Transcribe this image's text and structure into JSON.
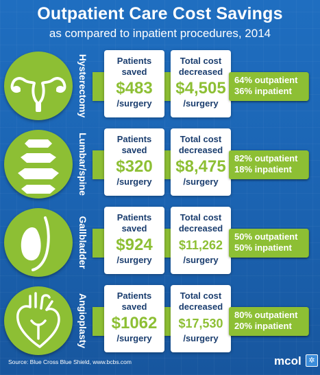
{
  "header": {
    "title": "Outpatient Care Cost Savings",
    "subtitle": "as compared to inpatient procedures, 2014"
  },
  "colors": {
    "background": "#1b63b1",
    "accent_green": "#8dbf34",
    "text_navy": "#1a3d6e"
  },
  "card_labels": {
    "patients_line1": "Patients",
    "patients_line2": "saved",
    "cost_line1": "Total cost",
    "cost_line2": "decreased",
    "per": "/surgery"
  },
  "procedures": [
    {
      "name": "Hysterectomy",
      "icon": "uterus-icon",
      "patients_saved": "$483",
      "cost_decreased": "$4,505",
      "outpatient": "64% outpatient",
      "inpatient": "36% inpatient"
    },
    {
      "name": "Lumbar/spine",
      "icon": "spine-icon",
      "patients_saved": "$320",
      "cost_decreased": "$8,475",
      "outpatient": "82% outpatient",
      "inpatient": "18% inpatient"
    },
    {
      "name": "Gallbladder",
      "icon": "gallbladder-icon",
      "patients_saved": "$924",
      "cost_decreased": "$11,262",
      "outpatient": "50% outpatient",
      "inpatient": "50% inpatient"
    },
    {
      "name": "Angioplasty",
      "icon": "heart-icon",
      "patients_saved": "$1062",
      "cost_decreased": "$17,530",
      "outpatient": "80% outpatient",
      "inpatient": "20% inpatient"
    }
  ],
  "footer": {
    "source": "Source:  Blue Cross Blue Shield, www.bcbs.com",
    "logo_text": "mcol",
    "logo_mark": "✲"
  }
}
